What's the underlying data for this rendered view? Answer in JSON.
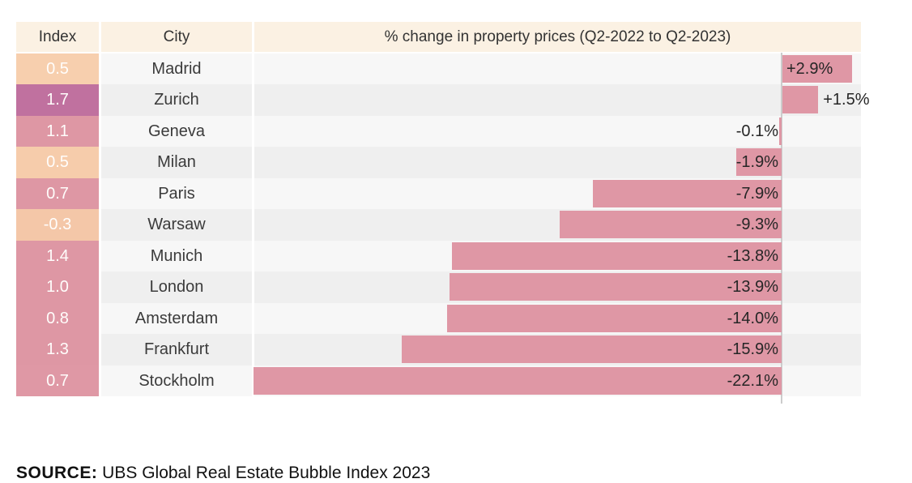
{
  "table": {
    "headers": {
      "index": "Index",
      "city": "City",
      "change": "% change in property prices (Q2-2022 to Q2-2023)"
    },
    "rows": [
      {
        "index": "0.5",
        "city": "Madrid",
        "change_label": "+2.9%",
        "change": 2.9,
        "category": "fair-valued",
        "cell_color": "#f7cfae"
      },
      {
        "index": "1.7",
        "city": "Zurich",
        "change_label": "+1.5%",
        "change": 1.5,
        "category": "bubble-risk",
        "cell_color": "#c0719f"
      },
      {
        "index": "1.1",
        "city": "Geneva",
        "change_label": "-0.1%",
        "change": -0.1,
        "category": "overvalued",
        "cell_color": "#de97a4"
      },
      {
        "index": "0.5",
        "city": "Milan",
        "change_label": "-1.9%",
        "change": -1.9,
        "category": "fair-valued",
        "cell_color": "#f6ccab"
      },
      {
        "index": "0.7",
        "city": "Paris",
        "change_label": "-7.9%",
        "change": -7.9,
        "category": "overvalued",
        "cell_color": "#de97a4"
      },
      {
        "index": "-0.3",
        "city": "Warsaw",
        "change_label": "-9.3%",
        "change": -9.3,
        "category": "fair-valued",
        "cell_color": "#f4c7a8"
      },
      {
        "index": "1.4",
        "city": "Munich",
        "change_label": "-13.8%",
        "change": -13.8,
        "category": "overvalued",
        "cell_color": "#de97a4"
      },
      {
        "index": "1.0",
        "city": "London",
        "change_label": "-13.9%",
        "change": -13.9,
        "category": "overvalued",
        "cell_color": "#de97a4"
      },
      {
        "index": "0.8",
        "city": "Amsterdam",
        "change_label": "-14.0%",
        "change": -14.0,
        "category": "overvalued",
        "cell_color": "#de97a4"
      },
      {
        "index": "1.3",
        "city": "Frankfurt",
        "change_label": "-15.9%",
        "change": -15.9,
        "category": "overvalued",
        "cell_color": "#de97a4"
      },
      {
        "index": "0.7",
        "city": "Stockholm",
        "change_label": "-22.1%",
        "change": -22.1,
        "category": "overvalued",
        "cell_color": "#df98a5"
      }
    ]
  },
  "source": {
    "label": "SOURCE:",
    "text": " UBS Global Real Estate Bubble Index 2023"
  },
  "colors": {
    "header_bg": "#fbf1e3",
    "row_light": "#f7f7f7",
    "row_dark": "#efefef",
    "bar": "#df97a5",
    "baseline": "#cccccc",
    "fair_valued": "#f6ccab",
    "overvalued": "#de97a4",
    "bubble_risk": "#c0719f",
    "index_text": "#ffffff"
  },
  "chart_data": {
    "type": "bar",
    "orientation": "horizontal",
    "title": "% change in property prices (Q2-2022 to Q2-2023)",
    "categories": [
      "Madrid",
      "Zurich",
      "Geneva",
      "Milan",
      "Paris",
      "Warsaw",
      "Munich",
      "London",
      "Amsterdam",
      "Frankfurt",
      "Stockholm"
    ],
    "series": [
      {
        "name": "% change in property prices (Q2-2022 to Q2-2023)",
        "values": [
          2.9,
          1.5,
          -0.1,
          -1.9,
          -7.9,
          -9.3,
          -13.8,
          -13.9,
          -14.0,
          -15.9,
          -22.1
        ]
      },
      {
        "name": "Index",
        "values": [
          0.5,
          1.7,
          1.1,
          0.5,
          0.7,
          -0.3,
          1.4,
          1.0,
          0.8,
          1.3,
          0.7
        ]
      }
    ],
    "xlim": [
      -22.1,
      3.3
    ],
    "grid": false,
    "legend": "none",
    "data_labels": true,
    "annotations": [
      "SOURCE: UBS Global Real Estate Bubble Index 2023"
    ]
  }
}
